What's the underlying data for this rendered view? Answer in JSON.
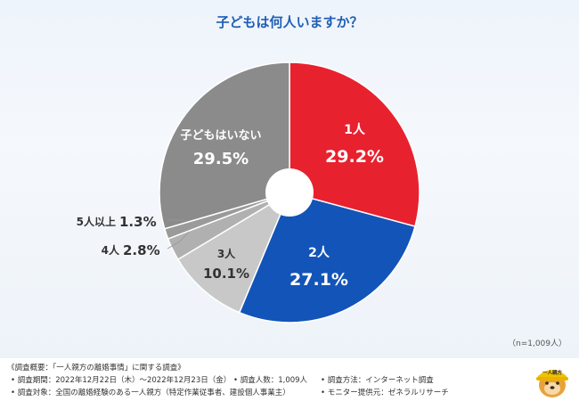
{
  "chart_data": {
    "type": "pie",
    "title": "子どもは何人いますか？",
    "sample_size": "（n=1,009人）",
    "slices": [
      {
        "label": "1人",
        "value": 29.2,
        "value_label": "29.2%",
        "color": "#e8212f"
      },
      {
        "label": "2人",
        "value": 27.1,
        "value_label": "27.1%",
        "color": "#1354b8"
      },
      {
        "label": "3人",
        "value": 10.1,
        "value_label": "10.1%",
        "color": "#c8c8c8"
      },
      {
        "label": "4人",
        "value": 2.8,
        "value_label": "2.8%",
        "color": "#b0b0b0"
      },
      {
        "label": "5人以上",
        "value": 1.3,
        "value_label": "1.3%",
        "color": "#9a9a9a"
      },
      {
        "label": "子どもはいない",
        "value": 29.5,
        "value_label": "29.5%",
        "color": "#8b8b8b"
      }
    ]
  },
  "footer": {
    "summary_title": "《調査概要：「一人親方の離婚事情」に関する調査》",
    "period": "• 調査期間：2022年12月22日（木）〜2022年12月23日（金）",
    "respondents": "• 調査人数：1,009人",
    "method": "• 調査方法：インターネット調査",
    "target": "• 調査対象：全国の離婚経験のある一人親方（特定作業従事者、建設個人事業主）",
    "provider": "• モニター提供元：ゼネラルリサーチ"
  },
  "logo": {
    "badge_text": "一人親方",
    "colors": {
      "hat": "#f2c200",
      "face": "#e9a23b"
    }
  }
}
